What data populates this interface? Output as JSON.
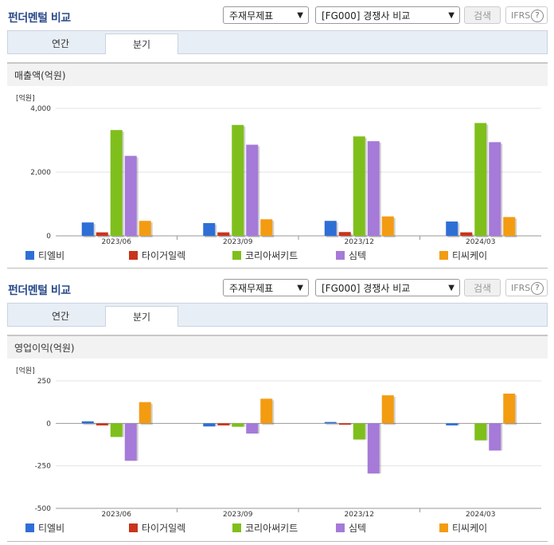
{
  "panels": [
    {
      "title": "펀더멘털 비교",
      "select1": "주재무제표",
      "select2": "[FG000] 경쟁사 비교",
      "search_label": "검색",
      "ifrs_label": "IFRS",
      "help_glyph": "?",
      "tabs": [
        {
          "label": "연간"
        },
        {
          "label": "분기"
        }
      ],
      "active_tab": 1,
      "section_title": "매출액(억원)"
    },
    {
      "title": "펀더멘털 비교",
      "select1": "주재무제표",
      "select2": "[FG000] 경쟁사 비교",
      "search_label": "검색",
      "ifrs_label": "IFRS",
      "help_glyph": "?",
      "tabs": [
        {
          "label": "연간"
        },
        {
          "label": "분기"
        }
      ],
      "active_tab": 1,
      "section_title": "영업이익(억원)"
    }
  ],
  "colors": {
    "series": [
      "#2e6fd6",
      "#c8341c",
      "#7fbf1c",
      "#a57ad8",
      "#f39c12"
    ],
    "title": "#2a4a8a"
  },
  "chart_data": [
    {
      "type": "bar",
      "unit_label": "[억원]",
      "categories": [
        "2023/06",
        "2023/09",
        "2023/12",
        "2024/03"
      ],
      "yticks": [
        0,
        2000,
        4000
      ],
      "ytick_labels": [
        "0",
        "2,000",
        "4,000"
      ],
      "ylim": [
        0,
        4000
      ],
      "grid": true,
      "legend_position": "bottom",
      "series": [
        {
          "name": "티엘비",
          "values": [
            420,
            400,
            470,
            450
          ]
        },
        {
          "name": "타이거일렉",
          "values": [
            110,
            110,
            120,
            110
          ]
        },
        {
          "name": "코리아써키트",
          "values": [
            3320,
            3480,
            3120,
            3540
          ]
        },
        {
          "name": "심텍",
          "values": [
            2510,
            2860,
            2970,
            2940
          ]
        },
        {
          "name": "티씨케이",
          "values": [
            470,
            520,
            610,
            590
          ]
        }
      ]
    },
    {
      "type": "bar",
      "unit_label": "[억원]",
      "categories": [
        "2023/06",
        "2023/09",
        "2023/12",
        "2024/03"
      ],
      "yticks": [
        -500,
        -250,
        0,
        250
      ],
      "ytick_labels": [
        "-500",
        "-250",
        "0",
        "250"
      ],
      "ylim": [
        -500,
        250
      ],
      "grid": true,
      "legend_position": "bottom",
      "series": [
        {
          "name": "티엘비",
          "values": [
            12,
            -18,
            8,
            -12
          ]
        },
        {
          "name": "타이거일렉",
          "values": [
            -12,
            -12,
            -8,
            0
          ]
        },
        {
          "name": "코리아써키트",
          "values": [
            -80,
            -20,
            -95,
            -100
          ]
        },
        {
          "name": "심텍",
          "values": [
            -220,
            -60,
            -295,
            -160
          ]
        },
        {
          "name": "티씨케이",
          "values": [
            125,
            145,
            165,
            175
          ]
        }
      ]
    }
  ]
}
